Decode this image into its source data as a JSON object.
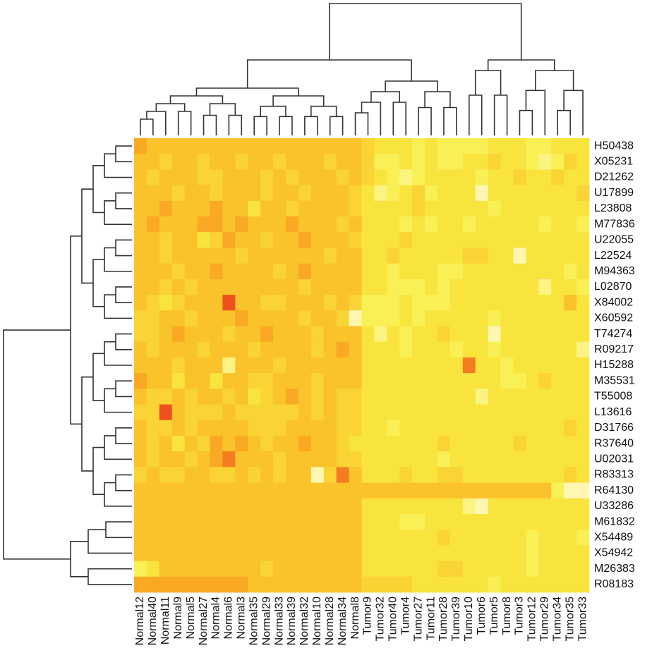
{
  "chart_data": {
    "type": "heatmap",
    "x": [
      "Normal12",
      "Normal40",
      "Normal11",
      "Normal9",
      "Normal5",
      "Normal27",
      "Normal4",
      "Normal6",
      "Normal3",
      "Normal35",
      "Normal29",
      "Normal33",
      "Normal39",
      "Normal32",
      "Normal10",
      "Normal28",
      "Normal34",
      "Normal8",
      "Tumor9",
      "Tumor32",
      "Tumor40",
      "Tumor4",
      "Tumor27",
      "Tumor11",
      "Tumor28",
      "Tumor39",
      "Tumor10",
      "Tumor6",
      "Tumor5",
      "Tumor8",
      "Tumor3",
      "Tumor12",
      "Tumor29",
      "Tumor34",
      "Tumor35",
      "Tumor33"
    ],
    "y": [
      "H50438",
      "X05231",
      "D21262",
      "U17899",
      "L23808",
      "M77836",
      "U22055",
      "L22524",
      "M94363",
      "L02870",
      "X84002",
      "X60592",
      "T74274",
      "R09217",
      "H15288",
      "M35531",
      "T55008",
      "L13616",
      "D31766",
      "R37640",
      "U02031",
      "R83313",
      "R64130",
      "U33286",
      "M61832",
      "X54489",
      "X54942",
      "M26383",
      "R08183"
    ],
    "zlim": [
      0,
      1
    ],
    "colorscale": [
      "#fffbe0",
      "#f8ef45",
      "#fbb724",
      "#e8261a"
    ],
    "values": [
      [
        0.7,
        0.6,
        0.6,
        0.6,
        0.6,
        0.6,
        0.6,
        0.6,
        0.6,
        0.6,
        0.6,
        0.6,
        0.6,
        0.6,
        0.6,
        0.6,
        0.6,
        0.6,
        0.5,
        0.4,
        0.4,
        0.4,
        0.3,
        0.4,
        0.3,
        0.3,
        0.3,
        0.3,
        0.4,
        0.4,
        0.4,
        0.3,
        0.3,
        0.4,
        0.4,
        0.4
      ],
      [
        0.6,
        0.6,
        0.5,
        0.6,
        0.6,
        0.5,
        0.6,
        0.6,
        0.5,
        0.6,
        0.6,
        0.5,
        0.6,
        0.6,
        0.6,
        0.5,
        0.6,
        0.6,
        0.5,
        0.3,
        0.3,
        0.4,
        0.3,
        0.4,
        0.3,
        0.3,
        0.4,
        0.4,
        0.5,
        0.4,
        0.4,
        0.3,
        0.2,
        0.3,
        0.5,
        0.4
      ],
      [
        0.6,
        0.5,
        0.6,
        0.6,
        0.6,
        0.5,
        0.5,
        0.6,
        0.6,
        0.6,
        0.5,
        0.6,
        0.5,
        0.6,
        0.6,
        0.6,
        0.5,
        0.6,
        0.5,
        0.4,
        0.3,
        0.2,
        0.3,
        0.4,
        0.4,
        0.4,
        0.4,
        0.3,
        0.4,
        0.4,
        0.5,
        0.4,
        0.4,
        0.5,
        0.4,
        0.4
      ],
      [
        0.6,
        0.6,
        0.6,
        0.5,
        0.6,
        0.6,
        0.5,
        0.6,
        0.6,
        0.6,
        0.5,
        0.6,
        0.6,
        0.5,
        0.6,
        0.6,
        0.6,
        0.5,
        0.4,
        0.2,
        0.3,
        0.4,
        0.5,
        0.3,
        0.4,
        0.4,
        0.4,
        0.1,
        0.4,
        0.4,
        0.4,
        0.4,
        0.4,
        0.4,
        0.4,
        0.5
      ],
      [
        0.6,
        0.6,
        0.7,
        0.6,
        0.6,
        0.6,
        0.7,
        0.6,
        0.6,
        0.4,
        0.6,
        0.6,
        0.5,
        0.6,
        0.6,
        0.6,
        0.6,
        0.5,
        0.4,
        0.4,
        0.4,
        0.4,
        0.5,
        0.4,
        0.4,
        0.4,
        0.4,
        0.4,
        0.3,
        0.4,
        0.4,
        0.4,
        0.4,
        0.4,
        0.4,
        0.4
      ],
      [
        0.6,
        0.7,
        0.6,
        0.6,
        0.6,
        0.7,
        0.7,
        0.6,
        0.7,
        0.6,
        0.6,
        0.6,
        0.7,
        0.6,
        0.6,
        0.6,
        0.5,
        0.6,
        0.4,
        0.4,
        0.4,
        0.3,
        0.4,
        0.3,
        0.4,
        0.4,
        0.3,
        0.4,
        0.4,
        0.4,
        0.4,
        0.4,
        0.3,
        0.4,
        0.4,
        0.3
      ],
      [
        0.6,
        0.6,
        0.5,
        0.6,
        0.6,
        0.4,
        0.5,
        0.7,
        0.6,
        0.6,
        0.5,
        0.6,
        0.6,
        0.7,
        0.6,
        0.6,
        0.6,
        0.5,
        0.4,
        0.4,
        0.4,
        0.5,
        0.4,
        0.4,
        0.4,
        0.4,
        0.4,
        0.4,
        0.4,
        0.4,
        0.4,
        0.4,
        0.4,
        0.4,
        0.4,
        0.4
      ],
      [
        0.6,
        0.6,
        0.5,
        0.6,
        0.6,
        0.6,
        0.6,
        0.6,
        0.5,
        0.6,
        0.6,
        0.6,
        0.6,
        0.6,
        0.6,
        0.5,
        0.6,
        0.6,
        0.4,
        0.4,
        0.5,
        0.4,
        0.4,
        0.4,
        0.4,
        0.4,
        0.5,
        0.5,
        0.4,
        0.4,
        0.1,
        0.4,
        0.4,
        0.4,
        0.4,
        0.4
      ],
      [
        0.6,
        0.6,
        0.6,
        0.5,
        0.6,
        0.6,
        0.7,
        0.6,
        0.6,
        0.6,
        0.6,
        0.5,
        0.6,
        0.7,
        0.6,
        0.6,
        0.6,
        0.6,
        0.4,
        0.4,
        0.3,
        0.4,
        0.4,
        0.4,
        0.3,
        0.3,
        0.4,
        0.4,
        0.4,
        0.4,
        0.4,
        0.4,
        0.4,
        0.4,
        0.3,
        0.4
      ],
      [
        0.6,
        0.6,
        0.5,
        0.6,
        0.5,
        0.6,
        0.6,
        0.6,
        0.6,
        0.6,
        0.6,
        0.6,
        0.6,
        0.5,
        0.6,
        0.6,
        0.6,
        0.6,
        0.4,
        0.4,
        0.3,
        0.3,
        0.3,
        0.4,
        0.3,
        0.4,
        0.4,
        0.4,
        0.4,
        0.4,
        0.4,
        0.4,
        0.2,
        0.4,
        0.4,
        0.3
      ],
      [
        0.6,
        0.5,
        0.4,
        0.5,
        0.6,
        0.6,
        0.6,
        0.9,
        0.6,
        0.6,
        0.5,
        0.5,
        0.6,
        0.6,
        0.6,
        0.5,
        0.6,
        0.5,
        0.3,
        0.3,
        0.3,
        0.4,
        0.3,
        0.3,
        0.3,
        0.4,
        0.4,
        0.4,
        0.4,
        0.4,
        0.4,
        0.4,
        0.4,
        0.4,
        0.6,
        0.4
      ],
      [
        0.5,
        0.5,
        0.6,
        0.6,
        0.5,
        0.6,
        0.6,
        0.6,
        0.7,
        0.6,
        0.6,
        0.6,
        0.6,
        0.5,
        0.6,
        0.6,
        0.5,
        0.1,
        0.3,
        0.3,
        0.3,
        0.4,
        0.3,
        0.4,
        0.4,
        0.4,
        0.4,
        0.4,
        0.3,
        0.4,
        0.4,
        0.4,
        0.4,
        0.4,
        0.4,
        0.4
      ],
      [
        0.5,
        0.5,
        0.6,
        0.7,
        0.6,
        0.6,
        0.6,
        0.5,
        0.6,
        0.6,
        0.7,
        0.6,
        0.6,
        0.6,
        0.5,
        0.6,
        0.6,
        0.6,
        0.4,
        0.2,
        0.4,
        0.3,
        0.4,
        0.4,
        0.5,
        0.4,
        0.4,
        0.4,
        0.1,
        0.4,
        0.4,
        0.4,
        0.4,
        0.4,
        0.4,
        0.4
      ],
      [
        0.6,
        0.5,
        0.6,
        0.6,
        0.6,
        0.5,
        0.6,
        0.6,
        0.6,
        0.5,
        0.6,
        0.6,
        0.6,
        0.6,
        0.5,
        0.6,
        0.7,
        0.6,
        0.4,
        0.4,
        0.4,
        0.3,
        0.4,
        0.4,
        0.4,
        0.3,
        0.4,
        0.4,
        0.3,
        0.4,
        0.4,
        0.4,
        0.4,
        0.4,
        0.4,
        0.2
      ],
      [
        0.6,
        0.6,
        0.6,
        0.5,
        0.6,
        0.6,
        0.6,
        0.2,
        0.6,
        0.6,
        0.6,
        0.5,
        0.6,
        0.6,
        0.6,
        0.6,
        0.6,
        0.6,
        0.4,
        0.4,
        0.4,
        0.4,
        0.4,
        0.4,
        0.4,
        0.4,
        0.8,
        0.4,
        0.4,
        0.3,
        0.4,
        0.4,
        0.4,
        0.4,
        0.4,
        0.4
      ],
      [
        0.7,
        0.6,
        0.6,
        0.4,
        0.6,
        0.6,
        0.4,
        0.6,
        0.6,
        0.5,
        0.5,
        0.6,
        0.6,
        0.6,
        0.5,
        0.6,
        0.6,
        0.6,
        0.4,
        0.4,
        0.4,
        0.4,
        0.4,
        0.4,
        0.4,
        0.4,
        0.4,
        0.4,
        0.4,
        0.3,
        0.3,
        0.4,
        0.5,
        0.4,
        0.4,
        0.4
      ],
      [
        0.6,
        0.5,
        0.5,
        0.6,
        0.5,
        0.6,
        0.6,
        0.5,
        0.6,
        0.4,
        0.5,
        0.6,
        0.7,
        0.6,
        0.5,
        0.6,
        0.5,
        0.5,
        0.4,
        0.4,
        0.4,
        0.4,
        0.4,
        0.4,
        0.4,
        0.4,
        0.4,
        0.2,
        0.4,
        0.4,
        0.4,
        0.4,
        0.4,
        0.4,
        0.4,
        0.4
      ],
      [
        0.5,
        0.5,
        0.9,
        0.6,
        0.5,
        0.5,
        0.5,
        0.6,
        0.5,
        0.5,
        0.5,
        0.5,
        0.5,
        0.6,
        0.5,
        0.6,
        0.5,
        0.5,
        0.4,
        0.4,
        0.4,
        0.4,
        0.4,
        0.4,
        0.4,
        0.4,
        0.4,
        0.4,
        0.4,
        0.4,
        0.4,
        0.4,
        0.4,
        0.4,
        0.4,
        0.4
      ],
      [
        0.6,
        0.5,
        0.5,
        0.6,
        0.5,
        0.6,
        0.6,
        0.6,
        0.6,
        0.5,
        0.5,
        0.5,
        0.6,
        0.6,
        0.6,
        0.6,
        0.5,
        0.5,
        0.4,
        0.4,
        0.3,
        0.4,
        0.4,
        0.4,
        0.4,
        0.4,
        0.4,
        0.4,
        0.4,
        0.4,
        0.4,
        0.4,
        0.4,
        0.4,
        0.5,
        0.4
      ],
      [
        0.6,
        0.5,
        0.6,
        0.4,
        0.6,
        0.5,
        0.7,
        0.6,
        0.7,
        0.6,
        0.5,
        0.6,
        0.6,
        0.7,
        0.6,
        0.6,
        0.5,
        0.4,
        0.4,
        0.4,
        0.4,
        0.4,
        0.4,
        0.4,
        0.5,
        0.4,
        0.4,
        0.4,
        0.4,
        0.4,
        0.5,
        0.4,
        0.4,
        0.4,
        0.4,
        0.4
      ],
      [
        0.6,
        0.5,
        0.6,
        0.6,
        0.5,
        0.6,
        0.7,
        0.8,
        0.6,
        0.6,
        0.6,
        0.5,
        0.6,
        0.6,
        0.6,
        0.6,
        0.5,
        0.5,
        0.4,
        0.4,
        0.4,
        0.4,
        0.4,
        0.4,
        0.3,
        0.4,
        0.4,
        0.4,
        0.4,
        0.4,
        0.4,
        0.4,
        0.4,
        0.4,
        0.4,
        0.4
      ],
      [
        0.5,
        0.6,
        0.5,
        0.5,
        0.6,
        0.6,
        0.5,
        0.5,
        0.6,
        0.5,
        0.6,
        0.5,
        0.6,
        0.6,
        0.1,
        0.5,
        0.8,
        0.6,
        0.4,
        0.4,
        0.4,
        0.5,
        0.4,
        0.4,
        0.5,
        0.5,
        0.4,
        0.4,
        0.4,
        0.4,
        0.4,
        0.4,
        0.4,
        0.4,
        0.5,
        0.4
      ],
      [
        0.6,
        0.6,
        0.6,
        0.6,
        0.6,
        0.6,
        0.6,
        0.6,
        0.6,
        0.6,
        0.6,
        0.6,
        0.6,
        0.6,
        0.6,
        0.6,
        0.6,
        0.6,
        0.6,
        0.6,
        0.6,
        0.6,
        0.6,
        0.6,
        0.6,
        0.6,
        0.6,
        0.6,
        0.6,
        0.6,
        0.6,
        0.6,
        0.6,
        0.3,
        0.1,
        0.1
      ],
      [
        0.6,
        0.6,
        0.6,
        0.6,
        0.6,
        0.6,
        0.6,
        0.6,
        0.6,
        0.6,
        0.6,
        0.6,
        0.6,
        0.6,
        0.6,
        0.6,
        0.6,
        0.6,
        0.4,
        0.4,
        0.4,
        0.4,
        0.4,
        0.4,
        0.4,
        0.4,
        0.2,
        0.1,
        0.4,
        0.4,
        0.4,
        0.4,
        0.4,
        0.4,
        0.4,
        0.4
      ],
      [
        0.6,
        0.6,
        0.6,
        0.6,
        0.6,
        0.6,
        0.6,
        0.6,
        0.6,
        0.6,
        0.6,
        0.6,
        0.6,
        0.6,
        0.6,
        0.6,
        0.6,
        0.6,
        0.4,
        0.4,
        0.4,
        0.3,
        0.3,
        0.4,
        0.4,
        0.4,
        0.4,
        0.4,
        0.4,
        0.4,
        0.4,
        0.4,
        0.4,
        0.4,
        0.4,
        0.4
      ],
      [
        0.6,
        0.6,
        0.6,
        0.6,
        0.6,
        0.6,
        0.6,
        0.6,
        0.6,
        0.6,
        0.6,
        0.6,
        0.6,
        0.6,
        0.6,
        0.6,
        0.6,
        0.6,
        0.4,
        0.4,
        0.4,
        0.4,
        0.4,
        0.4,
        0.5,
        0.4,
        0.4,
        0.4,
        0.4,
        0.4,
        0.4,
        0.3,
        0.4,
        0.4,
        0.4,
        0.3
      ],
      [
        0.6,
        0.6,
        0.6,
        0.6,
        0.6,
        0.6,
        0.6,
        0.6,
        0.6,
        0.6,
        0.6,
        0.6,
        0.6,
        0.6,
        0.6,
        0.6,
        0.6,
        0.6,
        0.4,
        0.4,
        0.4,
        0.4,
        0.4,
        0.4,
        0.4,
        0.4,
        0.4,
        0.4,
        0.4,
        0.4,
        0.4,
        0.3,
        0.4,
        0.4,
        0.4,
        0.4
      ],
      [
        0.3,
        0.4,
        0.6,
        0.6,
        0.6,
        0.6,
        0.6,
        0.6,
        0.6,
        0.6,
        0.5,
        0.6,
        0.6,
        0.6,
        0.6,
        0.6,
        0.6,
        0.6,
        0.4,
        0.4,
        0.4,
        0.4,
        0.4,
        0.4,
        0.5,
        0.5,
        0.4,
        0.4,
        0.4,
        0.4,
        0.4,
        0.3,
        0.4,
        0.4,
        0.4,
        0.4
      ],
      [
        0.7,
        0.7,
        0.7,
        0.7,
        0.7,
        0.7,
        0.7,
        0.7,
        0.7,
        0.6,
        0.6,
        0.6,
        0.6,
        0.6,
        0.6,
        0.6,
        0.6,
        0.6,
        0.5,
        0.5,
        0.5,
        0.5,
        0.4,
        0.4,
        0.4,
        0.4,
        0.4,
        0.4,
        0.3,
        0.4,
        0.4,
        0.4,
        0.4,
        0.4,
        0.4,
        0.4
      ]
    ]
  }
}
